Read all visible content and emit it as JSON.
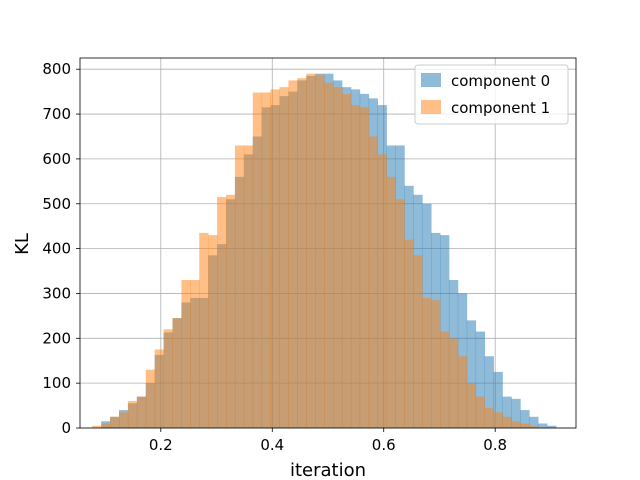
{
  "chart_data": {
    "type": "histogram",
    "title": "",
    "xlabel": "iteration",
    "ylabel": "KL",
    "xlim": [
      0.055,
      0.945
    ],
    "ylim": [
      0,
      825
    ],
    "x_ticks": [
      0.2,
      0.4,
      0.6,
      0.8
    ],
    "y_ticks": [
      0,
      100,
      200,
      300,
      400,
      500,
      600,
      700,
      800
    ],
    "grid": true,
    "legend": {
      "placement": "top-right"
    },
    "series": [
      {
        "name": "component 0",
        "color": "#1f77b4",
        "alpha": 0.5,
        "bins": [
          [
            0.093,
            0.109,
            15
          ],
          [
            0.109,
            0.125,
            25
          ],
          [
            0.125,
            0.141,
            40
          ],
          [
            0.141,
            0.157,
            55
          ],
          [
            0.157,
            0.173,
            70
          ],
          [
            0.173,
            0.189,
            100
          ],
          [
            0.189,
            0.205,
            163
          ],
          [
            0.205,
            0.221,
            213
          ],
          [
            0.221,
            0.237,
            245
          ],
          [
            0.237,
            0.253,
            280
          ],
          [
            0.253,
            0.269,
            290
          ],
          [
            0.269,
            0.285,
            290
          ],
          [
            0.285,
            0.301,
            385
          ],
          [
            0.301,
            0.317,
            410
          ],
          [
            0.317,
            0.333,
            510
          ],
          [
            0.333,
            0.349,
            560
          ],
          [
            0.349,
            0.365,
            610
          ],
          [
            0.365,
            0.381,
            650
          ],
          [
            0.381,
            0.397,
            715
          ],
          [
            0.397,
            0.413,
            720
          ],
          [
            0.413,
            0.429,
            740
          ],
          [
            0.429,
            0.445,
            750
          ],
          [
            0.445,
            0.461,
            775
          ],
          [
            0.461,
            0.477,
            785
          ],
          [
            0.477,
            0.493,
            790
          ],
          [
            0.493,
            0.509,
            790
          ],
          [
            0.509,
            0.525,
            775
          ],
          [
            0.525,
            0.541,
            760
          ],
          [
            0.541,
            0.557,
            755
          ],
          [
            0.557,
            0.573,
            745
          ],
          [
            0.573,
            0.589,
            735
          ],
          [
            0.589,
            0.605,
            720
          ],
          [
            0.605,
            0.621,
            630
          ],
          [
            0.621,
            0.637,
            630
          ],
          [
            0.637,
            0.653,
            540
          ],
          [
            0.653,
            0.669,
            520
          ],
          [
            0.669,
            0.685,
            500
          ],
          [
            0.685,
            0.701,
            435
          ],
          [
            0.701,
            0.717,
            430
          ],
          [
            0.717,
            0.733,
            330
          ],
          [
            0.733,
            0.749,
            300
          ],
          [
            0.749,
            0.765,
            240
          ],
          [
            0.765,
            0.781,
            215
          ],
          [
            0.781,
            0.797,
            160
          ],
          [
            0.797,
            0.813,
            125
          ],
          [
            0.813,
            0.829,
            70
          ],
          [
            0.829,
            0.845,
            65
          ],
          [
            0.845,
            0.861,
            40
          ],
          [
            0.861,
            0.877,
            25
          ],
          [
            0.877,
            0.893,
            10
          ],
          [
            0.893,
            0.909,
            5
          ]
        ]
      },
      {
        "name": "component 1",
        "color": "#ff7f0e",
        "alpha": 0.5,
        "bins": [
          [
            0.077,
            0.093,
            5
          ],
          [
            0.093,
            0.109,
            10
          ],
          [
            0.109,
            0.125,
            25
          ],
          [
            0.125,
            0.141,
            35
          ],
          [
            0.141,
            0.157,
            60
          ],
          [
            0.157,
            0.173,
            70
          ],
          [
            0.173,
            0.189,
            130
          ],
          [
            0.189,
            0.205,
            175
          ],
          [
            0.205,
            0.221,
            220
          ],
          [
            0.221,
            0.237,
            245
          ],
          [
            0.237,
            0.253,
            330
          ],
          [
            0.253,
            0.269,
            330
          ],
          [
            0.269,
            0.285,
            435
          ],
          [
            0.285,
            0.301,
            430
          ],
          [
            0.301,
            0.317,
            515
          ],
          [
            0.317,
            0.333,
            520
          ],
          [
            0.333,
            0.349,
            630
          ],
          [
            0.349,
            0.365,
            630
          ],
          [
            0.365,
            0.381,
            748
          ],
          [
            0.381,
            0.397,
            748
          ],
          [
            0.397,
            0.413,
            755
          ],
          [
            0.413,
            0.429,
            760
          ],
          [
            0.429,
            0.445,
            775
          ],
          [
            0.445,
            0.461,
            780
          ],
          [
            0.461,
            0.477,
            790
          ],
          [
            0.477,
            0.493,
            788
          ],
          [
            0.493,
            0.509,
            770
          ],
          [
            0.509,
            0.525,
            760
          ],
          [
            0.525,
            0.541,
            745
          ],
          [
            0.541,
            0.557,
            720
          ],
          [
            0.557,
            0.573,
            715
          ],
          [
            0.573,
            0.589,
            650
          ],
          [
            0.589,
            0.605,
            610
          ],
          [
            0.605,
            0.621,
            560
          ],
          [
            0.621,
            0.637,
            510
          ],
          [
            0.637,
            0.653,
            420
          ],
          [
            0.653,
            0.669,
            385
          ],
          [
            0.669,
            0.685,
            290
          ],
          [
            0.685,
            0.701,
            285
          ],
          [
            0.701,
            0.717,
            215
          ],
          [
            0.717,
            0.733,
            200
          ],
          [
            0.733,
            0.749,
            160
          ],
          [
            0.749,
            0.765,
            100
          ],
          [
            0.765,
            0.781,
            70
          ],
          [
            0.781,
            0.797,
            45
          ],
          [
            0.797,
            0.813,
            35
          ],
          [
            0.813,
            0.829,
            25
          ],
          [
            0.829,
            0.845,
            15
          ],
          [
            0.845,
            0.861,
            10
          ],
          [
            0.861,
            0.877,
            5
          ]
        ]
      }
    ]
  }
}
